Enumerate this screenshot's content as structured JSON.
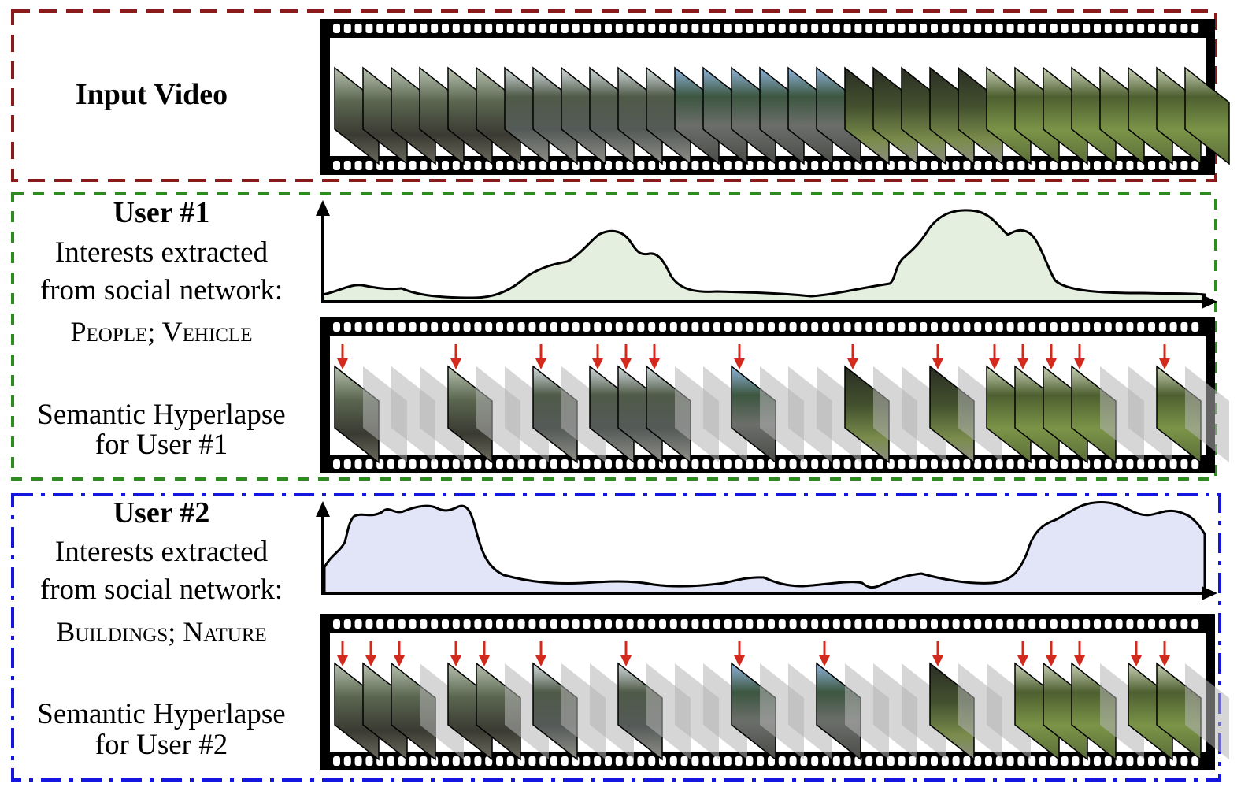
{
  "input_panel": {
    "title": "Input Video",
    "border_color": "#8b1a1a"
  },
  "user1_panel": {
    "title": "User #1",
    "interests_line1": "Interests extracted",
    "interests_line2": "from social network:",
    "interests": "People; Vehicle",
    "hyperlapse_line1": "Semantic Hyperlapse",
    "hyperlapse_line2": "for User #1",
    "border_color": "#2e8b1f",
    "curve_fill": "#e4efe0",
    "selected_frames": [
      0,
      4,
      7,
      9,
      10,
      11,
      14,
      18,
      21,
      23,
      24,
      25,
      26,
      29
    ]
  },
  "user2_panel": {
    "title": "User #2",
    "interests_line1": "Interests extracted",
    "interests_line2": "from social network:",
    "interests": "Buildings; Nature",
    "hyperlapse_line1": "Semantic Hyperlapse",
    "hyperlapse_line2": "for User #2",
    "border_color": "#1515e0",
    "curve_fill": "#e2e4f8",
    "selected_frames": [
      0,
      1,
      2,
      4,
      5,
      7,
      10,
      14,
      17,
      21,
      24,
      25,
      26,
      28,
      29
    ]
  },
  "colors": {
    "arrow": "#d42a1e",
    "film": "#000000"
  },
  "frame_count": 31
}
